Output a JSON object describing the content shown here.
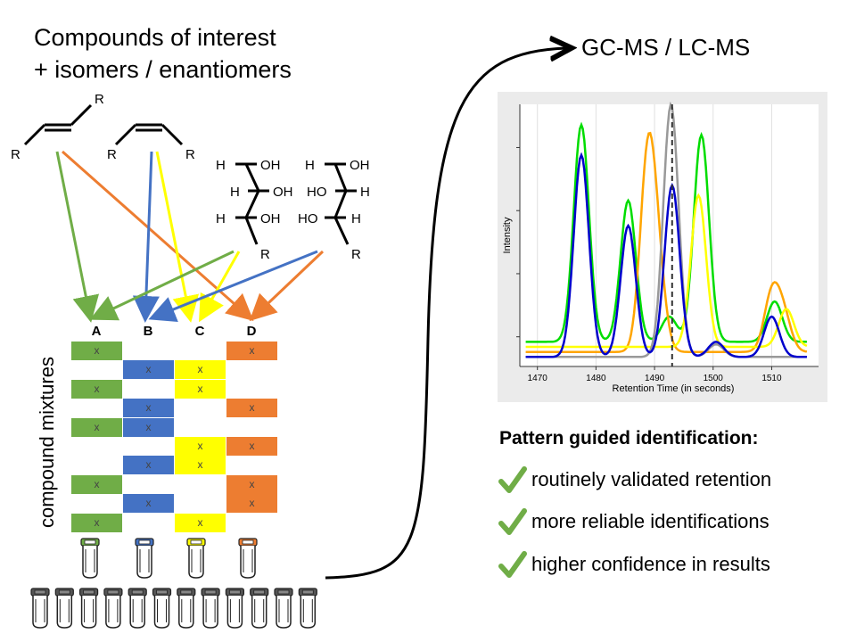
{
  "title_lines": [
    "Compounds of interest",
    "+ isomers / enantiomers"
  ],
  "gcms_label": "GC-MS / LC-MS",
  "mixtures_label": "compound mixtures",
  "columns": [
    {
      "label": "A",
      "color": "#70ad47"
    },
    {
      "label": "B",
      "color": "#4472c4"
    },
    {
      "label": "C",
      "color": "#ffff00"
    },
    {
      "label": "D",
      "color": "#ed7d31"
    }
  ],
  "cell_mark": "x",
  "mixture_rows": [
    [
      1,
      0,
      0,
      1
    ],
    [
      0,
      1,
      1,
      0
    ],
    [
      1,
      0,
      1,
      0
    ],
    [
      0,
      1,
      0,
      1
    ],
    [
      1,
      1,
      0,
      0
    ],
    [
      0,
      0,
      1,
      1
    ],
    [
      0,
      1,
      1,
      0
    ],
    [
      1,
      0,
      0,
      1
    ],
    [
      0,
      1,
      0,
      1
    ],
    [
      1,
      0,
      1,
      0
    ]
  ],
  "molecules": {
    "r_label": "R",
    "h_label": "H",
    "oh_label": "OH",
    "ho_label": "HO"
  },
  "chart_data": {
    "type": "line",
    "xlabel": "Retention Time (in seconds)",
    "ylabel": "Intensity",
    "xlim": [
      1467,
      1518
    ],
    "x_ticks": [
      1470,
      1480,
      1490,
      1500,
      1510
    ],
    "dashed_line_x": 1493,
    "grid": "vertical",
    "series": [
      {
        "color": "#00dd00",
        "baseline": 0.08,
        "peaks": [
          [
            1477.5,
            0.86
          ],
          [
            1485.5,
            0.56
          ],
          [
            1492.5,
            0.1
          ],
          [
            1498,
            0.82
          ],
          [
            1510.5,
            0.16
          ]
        ]
      },
      {
        "color": "#ffa500",
        "baseline": 0.04,
        "peaks": [
          [
            1488.8,
            0.72
          ],
          [
            1490.5,
            0.3
          ],
          [
            1510,
            0.22
          ],
          [
            1512,
            0.14
          ]
        ]
      },
      {
        "color": "#ffff00",
        "baseline": 0.06,
        "peaks": [
          [
            1497.5,
            0.6
          ],
          [
            1512.5,
            0.15
          ]
        ]
      },
      {
        "color": "#999999",
        "baseline": 0.02,
        "peaks": [
          [
            1492.8,
            1.0
          ],
          [
            1500.5,
            0.05
          ]
        ]
      },
      {
        "color": "#0000cc",
        "baseline": 0.02,
        "peaks": [
          [
            1477.5,
            0.8
          ],
          [
            1485.5,
            0.52
          ],
          [
            1493,
            0.68
          ],
          [
            1500.5,
            0.06
          ],
          [
            1510,
            0.16
          ]
        ]
      }
    ]
  },
  "pattern_title": "Pattern guided identification:",
  "benefits": [
    "routinely validated retention",
    "more reliable identifications",
    "higher confidence in results"
  ],
  "check_color": "#70ad47"
}
